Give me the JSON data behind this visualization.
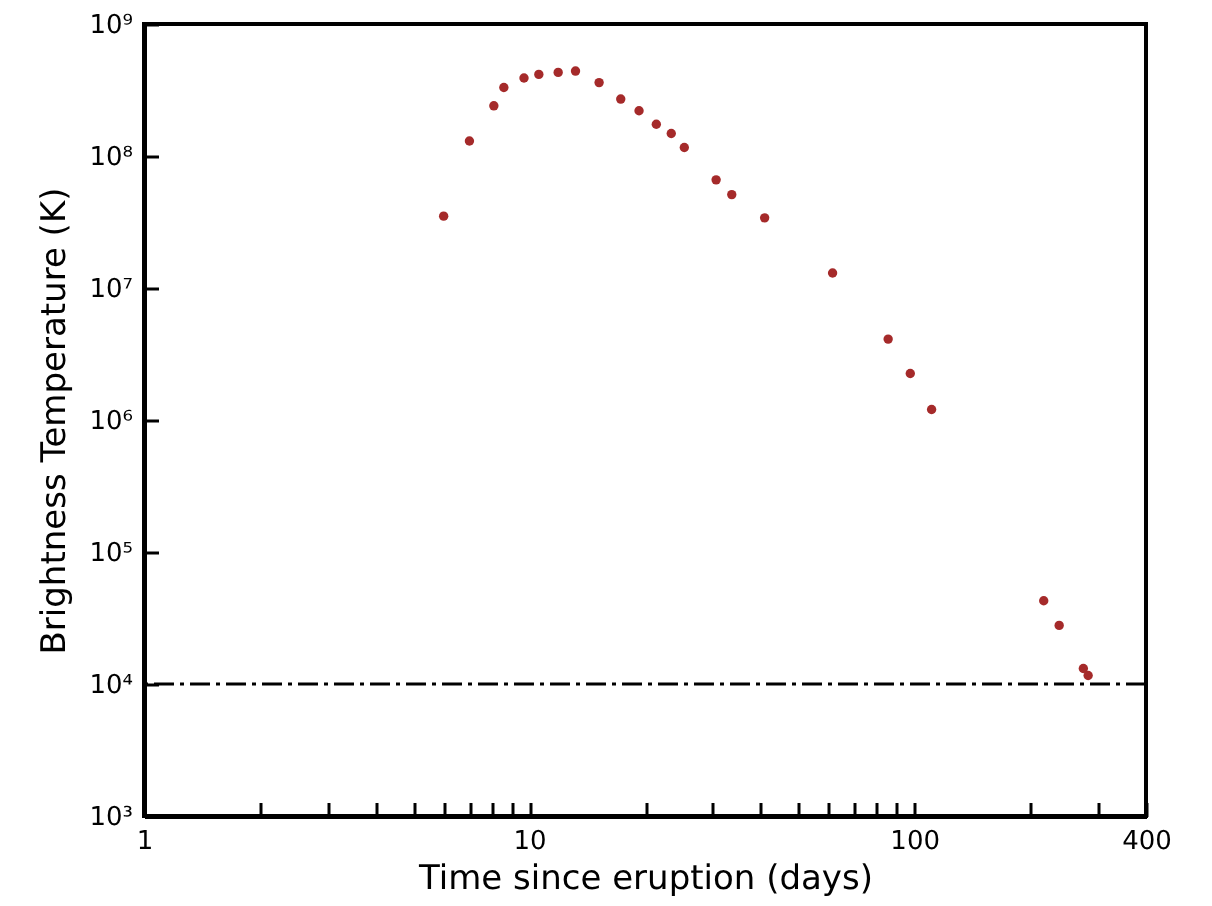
{
  "chart_data": {
    "type": "scatter",
    "xlabel": "Time since eruption (days)",
    "ylabel": "Brightness Temperature (K)",
    "x": [
      6.0,
      7.0,
      8.1,
      8.6,
      9.7,
      10.6,
      11.9,
      13.2,
      15.2,
      17.3,
      19.3,
      21.4,
      23.4,
      25.3,
      30.6,
      33.6,
      40.9,
      61.4,
      85.6,
      97.7,
      111,
      217,
      238,
      275,
      283
    ],
    "series": [
      {
        "color": "#a52a2a",
        "values": [
          35000000.0,
          130000000.0,
          240000000.0,
          330000000.0,
          390000000.0,
          415000000.0,
          430000000.0,
          440000000.0,
          360000000.0,
          270000000.0,
          220000000.0,
          174000000.0,
          148000000.0,
          116000000.0,
          66000000.0,
          51000000.0,
          34000000.0,
          13000000.0,
          4100000.0,
          2250000.0,
          1200000.0,
          42700.0,
          27800.0,
          13100.0,
          11600.0
        ]
      }
    ],
    "log": "xy",
    "marker": "circle",
    "grid": false,
    "xlim": [
      1,
      400
    ],
    "ylim": [
      1000,
      1000000000
    ],
    "xticks": [
      1,
      {
        "value": 2,
        "label": null
      },
      {
        "value": 3,
        "label": null
      },
      {
        "value": 4,
        "label": null
      },
      {
        "value": 5,
        "label": null
      },
      {
        "value": 6,
        "label": null
      },
      {
        "value": 7,
        "label": null
      },
      {
        "value": 8,
        "label": null
      },
      {
        "value": 9,
        "label": null
      },
      10,
      {
        "value": 20,
        "label": null
      },
      {
        "value": 30,
        "label": null
      },
      {
        "value": 40,
        "label": null
      },
      {
        "value": 50,
        "label": null
      },
      {
        "value": 60,
        "label": null
      },
      {
        "value": 70,
        "label": null
      },
      {
        "value": 80,
        "label": null
      },
      {
        "value": 90,
        "label": null
      },
      100,
      {
        "value": 200,
        "label": null
      },
      {
        "value": 300,
        "label": null
      },
      400
    ],
    "yticks": [
      {
        "value": 1000,
        "label": "10³"
      },
      {
        "value": 10000,
        "label": "10⁴"
      },
      {
        "value": 100000,
        "label": "10⁵"
      },
      {
        "value": 1000000,
        "label": "10⁶"
      },
      {
        "value": 10000000,
        "label": "10⁷"
      },
      {
        "value": 100000000,
        "label": "10⁸"
      },
      {
        "value": 1000000000,
        "label": "10⁹"
      }
    ],
    "ref_lines": [
      {
        "axis": "y",
        "value": 10000,
        "color": "#000000",
        "line_style": "dashdot"
      }
    ]
  }
}
